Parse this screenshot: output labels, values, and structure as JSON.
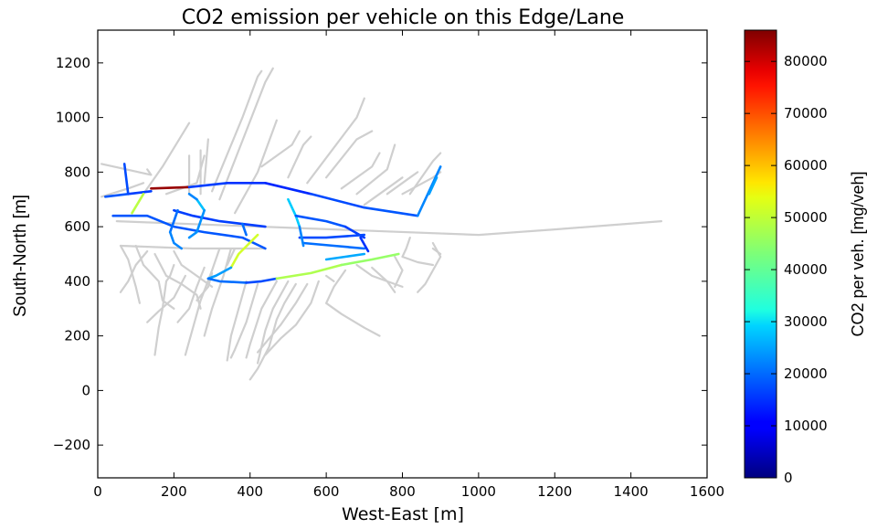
{
  "chart_data": {
    "type": "line",
    "title": "CO2 emission per vehicle on this Edge/Lane",
    "xlabel": "West-East [m]",
    "ylabel": "South-North [m]",
    "xlim": [
      0,
      1600
    ],
    "ylim": [
      -320,
      1320
    ],
    "x_ticks": [
      0,
      200,
      400,
      600,
      800,
      1000,
      1200,
      1400,
      1600
    ],
    "y_ticks": [
      -200,
      0,
      200,
      400,
      600,
      800,
      1000,
      1200
    ],
    "grid": false,
    "colorbar": {
      "label": "CO2 per veh. [mg/veh]",
      "range": [
        0,
        86000
      ],
      "ticks": [
        0,
        10000,
        20000,
        30000,
        40000,
        50000,
        60000,
        70000,
        80000
      ],
      "colormap": "jet"
    },
    "no_data_color": "#cfcfcf",
    "gray_edges": [
      [
        [
          50,
          620
        ],
        [
          1000,
          570
        ],
        [
          1200,
          590
        ],
        [
          1480,
          620
        ]
      ],
      [
        [
          130,
          810
        ],
        [
          140,
          790
        ],
        [
          10,
          830
        ]
      ],
      [
        [
          10,
          710
        ],
        [
          80,
          740
        ],
        [
          120,
          760
        ]
      ],
      [
        [
          120,
          720
        ],
        [
          170,
          820
        ],
        [
          240,
          980
        ]
      ],
      [
        [
          180,
          720
        ],
        [
          260,
          760
        ],
        [
          280,
          860
        ]
      ],
      [
        [
          240,
          720
        ],
        [
          240,
          860
        ]
      ],
      [
        [
          270,
          720
        ],
        [
          270,
          880
        ]
      ],
      [
        [
          280,
          760
        ],
        [
          290,
          920
        ]
      ],
      [
        [
          300,
          730
        ],
        [
          380,
          1000
        ],
        [
          420,
          1150
        ],
        [
          430,
          1170
        ]
      ],
      [
        [
          320,
          700
        ],
        [
          440,
          1130
        ],
        [
          460,
          1180
        ]
      ],
      [
        [
          360,
          650
        ],
        [
          420,
          800
        ],
        [
          470,
          990
        ]
      ],
      [
        [
          430,
          820
        ],
        [
          510,
          900
        ],
        [
          530,
          950
        ]
      ],
      [
        [
          500,
          780
        ],
        [
          540,
          900
        ],
        [
          560,
          930
        ]
      ],
      [
        [
          550,
          760
        ],
        [
          680,
          1000
        ],
        [
          700,
          1070
        ]
      ],
      [
        [
          600,
          780
        ],
        [
          680,
          920
        ],
        [
          720,
          950
        ]
      ],
      [
        [
          640,
          740
        ],
        [
          720,
          820
        ],
        [
          740,
          870
        ]
      ],
      [
        [
          680,
          720
        ],
        [
          760,
          810
        ],
        [
          780,
          900
        ]
      ],
      [
        [
          700,
          680
        ],
        [
          780,
          760
        ],
        [
          800,
          780
        ]
      ],
      [
        [
          760,
          720
        ],
        [
          820,
          780
        ],
        [
          840,
          800
        ]
      ],
      [
        [
          800,
          720
        ],
        [
          880,
          780
        ],
        [
          900,
          800
        ]
      ],
      [
        [
          820,
          720
        ],
        [
          880,
          840
        ],
        [
          900,
          870
        ]
      ],
      [
        [
          440,
          520
        ],
        [
          360,
          520
        ],
        [
          250,
          520
        ],
        [
          60,
          530
        ]
      ],
      [
        [
          60,
          530
        ],
        [
          80,
          480
        ],
        [
          100,
          380
        ],
        [
          110,
          320
        ]
      ],
      [
        [
          100,
          530
        ],
        [
          120,
          460
        ],
        [
          160,
          400
        ],
        [
          170,
          330
        ],
        [
          200,
          300
        ]
      ],
      [
        [
          130,
          510
        ],
        [
          100,
          460
        ],
        [
          80,
          400
        ],
        [
          60,
          360
        ]
      ],
      [
        [
          150,
          500
        ],
        [
          180,
          420
        ],
        [
          220,
          390
        ],
        [
          260,
          350
        ],
        [
          270,
          300
        ]
      ],
      [
        [
          200,
          510
        ],
        [
          220,
          460
        ],
        [
          260,
          420
        ],
        [
          300,
          380
        ]
      ],
      [
        [
          230,
          420
        ],
        [
          200,
          340
        ],
        [
          160,
          290
        ],
        [
          130,
          250
        ]
      ],
      [
        [
          280,
          450
        ],
        [
          260,
          380
        ],
        [
          240,
          300
        ],
        [
          210,
          250
        ]
      ],
      [
        [
          300,
          430
        ],
        [
          290,
          380
        ],
        [
          260,
          330
        ]
      ],
      [
        [
          180,
          400
        ],
        [
          170,
          300
        ],
        [
          160,
          230
        ],
        [
          150,
          130
        ]
      ],
      [
        [
          200,
          460
        ],
        [
          190,
          420
        ],
        [
          180,
          400
        ]
      ],
      [
        [
          320,
          520
        ],
        [
          300,
          440
        ],
        [
          270,
          330
        ],
        [
          230,
          130
        ]
      ],
      [
        [
          350,
          520
        ],
        [
          330,
          420
        ],
        [
          300,
          300
        ],
        [
          280,
          200
        ]
      ],
      [
        [
          360,
          520
        ],
        [
          340,
          460
        ]
      ],
      [
        [
          390,
          400
        ],
        [
          350,
          200
        ],
        [
          340,
          110
        ]
      ],
      [
        [
          420,
          390
        ],
        [
          390,
          250
        ],
        [
          360,
          150
        ],
        [
          350,
          120
        ]
      ],
      [
        [
          470,
          400
        ],
        [
          430,
          300
        ],
        [
          400,
          170
        ],
        [
          390,
          120
        ]
      ],
      [
        [
          500,
          400
        ],
        [
          460,
          300
        ],
        [
          440,
          220
        ],
        [
          420,
          100
        ]
      ],
      [
        [
          520,
          390
        ],
        [
          490,
          320
        ],
        [
          470,
          260
        ],
        [
          450,
          160
        ],
        [
          420,
          80
        ],
        [
          400,
          40
        ]
      ],
      [
        [
          550,
          390
        ],
        [
          520,
          320
        ],
        [
          480,
          240
        ],
        [
          450,
          190
        ],
        [
          420,
          140
        ]
      ],
      [
        [
          580,
          400
        ],
        [
          560,
          320
        ],
        [
          520,
          240
        ],
        [
          480,
          190
        ],
        [
          440,
          130
        ]
      ],
      [
        [
          600,
          420
        ],
        [
          620,
          400
        ]
      ],
      [
        [
          650,
          440
        ],
        [
          620,
          380
        ],
        [
          600,
          320
        ],
        [
          640,
          280
        ],
        [
          700,
          230
        ],
        [
          740,
          200
        ]
      ],
      [
        [
          680,
          460
        ],
        [
          720,
          420
        ],
        [
          760,
          400
        ],
        [
          780,
          360
        ]
      ],
      [
        [
          720,
          450
        ],
        [
          760,
          400
        ],
        [
          800,
          380
        ]
      ],
      [
        [
          780,
          490
        ],
        [
          800,
          440
        ],
        [
          780,
          380
        ]
      ],
      [
        [
          800,
          490
        ],
        [
          840,
          470
        ],
        [
          880,
          460
        ]
      ],
      [
        [
          880,
          540
        ],
        [
          900,
          490
        ],
        [
          880,
          440
        ],
        [
          860,
          390
        ],
        [
          840,
          360
        ]
      ],
      [
        [
          800,
          490
        ],
        [
          810,
          520
        ],
        [
          820,
          560
        ]
      ],
      [
        [
          880,
          520
        ],
        [
          900,
          500
        ]
      ]
    ],
    "colored_edges": [
      {
        "points": [
          [
            20,
            710
          ],
          [
            80,
            720
          ]
        ],
        "value": 18000
      },
      {
        "points": [
          [
            80,
            720
          ],
          [
            140,
            730
          ]
        ],
        "value": 16000
      },
      {
        "points": [
          [
            70,
            830
          ],
          [
            80,
            720
          ]
        ],
        "value": 17000
      },
      {
        "points": [
          [
            120,
            720
          ],
          [
            90,
            650
          ]
        ],
        "value": 48000
      },
      {
        "points": [
          [
            140,
            740
          ],
          [
            240,
            745
          ]
        ],
        "value": 84000
      },
      {
        "points": [
          [
            240,
            745
          ],
          [
            340,
            760
          ]
        ],
        "value": 16000
      },
      {
        "points": [
          [
            340,
            760
          ],
          [
            440,
            760
          ]
        ],
        "value": 15000
      },
      {
        "points": [
          [
            440,
            760
          ],
          [
            560,
            720
          ]
        ],
        "value": 14000
      },
      {
        "points": [
          [
            560,
            720
          ],
          [
            700,
            670
          ]
        ],
        "value": 17000
      },
      {
        "points": [
          [
            700,
            670
          ],
          [
            840,
            640
          ]
        ],
        "value": 18000
      },
      {
        "points": [
          [
            840,
            640
          ],
          [
            900,
            820
          ]
        ],
        "value": 22000
      },
      {
        "points": [
          [
            870,
            720
          ],
          [
            890,
            780
          ]
        ],
        "value": 24000
      },
      {
        "points": [
          [
            40,
            640
          ],
          [
            130,
            640
          ],
          [
            200,
            600
          ],
          [
            280,
            580
          ],
          [
            380,
            560
          ],
          [
            440,
            520
          ]
        ],
        "value": 18000
      },
      {
        "points": [
          [
            200,
            660
          ],
          [
            250,
            640
          ],
          [
            320,
            620
          ],
          [
            380,
            610
          ],
          [
            440,
            600
          ]
        ],
        "value": 16000
      },
      {
        "points": [
          [
            380,
            610
          ],
          [
            390,
            570
          ]
        ],
        "value": 20000
      },
      {
        "points": [
          [
            210,
            660
          ],
          [
            200,
            620
          ],
          [
            190,
            580
          ]
        ],
        "value": 20000
      },
      {
        "points": [
          [
            190,
            580
          ],
          [
            200,
            540
          ],
          [
            220,
            520
          ]
        ],
        "value": 22000
      },
      {
        "points": [
          [
            260,
            700
          ],
          [
            280,
            660
          ]
        ],
        "value": 27000
      },
      {
        "points": [
          [
            280,
            660
          ],
          [
            270,
            620
          ],
          [
            260,
            580
          ],
          [
            240,
            560
          ]
        ],
        "value": 23000
      },
      {
        "points": [
          [
            260,
            700
          ],
          [
            240,
            720
          ]
        ],
        "value": 22000
      },
      {
        "points": [
          [
            420,
            570
          ],
          [
            370,
            500
          ],
          [
            350,
            450
          ]
        ],
        "value": 50000
      },
      {
        "points": [
          [
            350,
            450
          ],
          [
            310,
            420
          ],
          [
            290,
            410
          ]
        ],
        "value": 24000
      },
      {
        "points": [
          [
            290,
            410
          ],
          [
            320,
            400
          ],
          [
            390,
            395
          ]
        ],
        "value": 20000
      },
      {
        "points": [
          [
            390,
            395
          ],
          [
            430,
            400
          ],
          [
            470,
            410
          ]
        ],
        "value": 17000
      },
      {
        "points": [
          [
            470,
            410
          ],
          [
            560,
            430
          ],
          [
            640,
            460
          ]
        ],
        "value": 47000
      },
      {
        "points": [
          [
            640,
            460
          ],
          [
            720,
            480
          ],
          [
            790,
            500
          ]
        ],
        "value": 45000
      },
      {
        "points": [
          [
            500,
            700
          ],
          [
            520,
            640
          ],
          [
            530,
            600
          ]
        ],
        "value": 28000
      },
      {
        "points": [
          [
            520,
            640
          ],
          [
            600,
            620
          ],
          [
            650,
            600
          ]
        ],
        "value": 18000
      },
      {
        "points": [
          [
            650,
            600
          ],
          [
            700,
            560
          ]
        ],
        "value": 16000
      },
      {
        "points": [
          [
            530,
            560
          ],
          [
            600,
            560
          ],
          [
            700,
            570
          ]
        ],
        "value": 17000
      },
      {
        "points": [
          [
            540,
            540
          ],
          [
            620,
            530
          ],
          [
            700,
            520
          ]
        ],
        "value": 20000
      },
      {
        "points": [
          [
            600,
            480
          ],
          [
            650,
            490
          ],
          [
            700,
            500
          ]
        ],
        "value": 25000
      },
      {
        "points": [
          [
            690,
            560
          ],
          [
            710,
            510
          ]
        ],
        "value": 15000
      },
      {
        "points": [
          [
            530,
            600
          ],
          [
            540,
            530
          ]
        ],
        "value": 22000
      }
    ]
  }
}
